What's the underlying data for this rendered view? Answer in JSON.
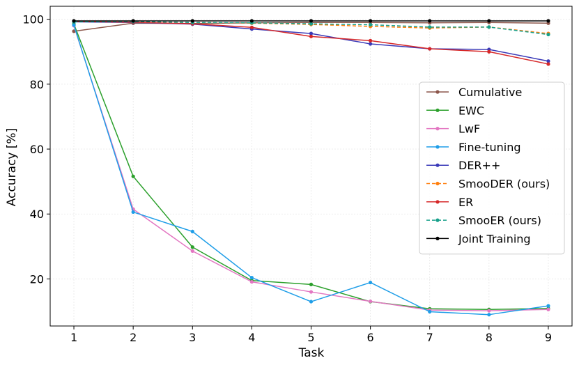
{
  "chart_data": {
    "type": "line",
    "title": "",
    "xlabel": "Task",
    "ylabel": "Accuracy [%]",
    "x": [
      1,
      2,
      3,
      4,
      5,
      6,
      7,
      8,
      9
    ],
    "xlim": [
      0.6,
      9.4
    ],
    "ylim": [
      5.5,
      104
    ],
    "yticks": [
      20,
      40,
      60,
      80,
      100
    ],
    "grid": true,
    "legend_position": "center-right",
    "series": [
      {
        "name": "Cumulative",
        "color": "#8c564b",
        "style": "solid",
        "values": [
          96.3,
          98.8,
          98.7,
          98.9,
          99.0,
          99.0,
          98.9,
          99.0,
          98.8
        ]
      },
      {
        "name": "EWC",
        "color": "#2ca02c",
        "style": "solid",
        "values": [
          98.5,
          51.6,
          29.8,
          19.5,
          18.3,
          13.0,
          10.8,
          10.6,
          10.9
        ]
      },
      {
        "name": "LwF",
        "color": "#e377c2",
        "style": "solid",
        "values": [
          98.0,
          41.5,
          28.6,
          19.1,
          16.0,
          13.1,
          10.4,
          10.2,
          10.6
        ]
      },
      {
        "name": "Fine-tuning",
        "color": "#1f9ee8",
        "style": "solid",
        "values": [
          98.2,
          40.6,
          34.6,
          20.4,
          13.0,
          18.9,
          9.9,
          9.0,
          11.7
        ]
      },
      {
        "name": "DER++",
        "color": "#3a3ab8",
        "style": "solid",
        "values": [
          99.2,
          99.0,
          98.5,
          97.0,
          95.6,
          92.4,
          90.9,
          90.7,
          87.1
        ]
      },
      {
        "name": "SmooDER (ours)",
        "color": "#ff7f0e",
        "style": "dashed",
        "values": [
          99.3,
          99.2,
          99.0,
          98.8,
          98.4,
          97.8,
          97.3,
          97.6,
          95.6
        ]
      },
      {
        "name": "ER",
        "color": "#d62728",
        "style": "solid",
        "values": [
          99.3,
          99.1,
          98.6,
          97.5,
          94.7,
          93.4,
          90.9,
          90.0,
          86.2
        ]
      },
      {
        "name": "SmooER (ours)",
        "color": "#17a08b",
        "style": "dashed",
        "values": [
          99.2,
          99.3,
          99.0,
          98.9,
          98.6,
          98.3,
          97.6,
          97.6,
          95.3
        ]
      },
      {
        "name": "Joint Training",
        "color": "#000000",
        "style": "solid",
        "values": [
          99.5,
          99.5,
          99.5,
          99.5,
          99.5,
          99.5,
          99.5,
          99.5,
          99.5
        ]
      }
    ]
  }
}
